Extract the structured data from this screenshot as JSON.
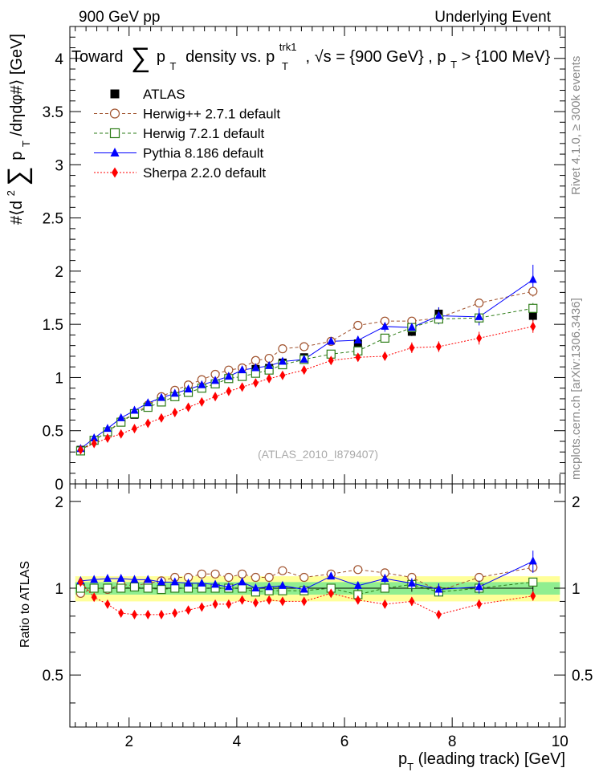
{
  "header": {
    "left": "900 GeV pp",
    "right": "Underlying Event"
  },
  "side_text": {
    "rivet": "Rivet 4.1.0, ≥ 300k events",
    "mcplots": "mcplots.cern.ch [arXiv:1306.3436]"
  },
  "chart_data": {
    "type": "scatter",
    "title": "Toward ∑ pT density vs. pT trk1, √s = {900 GeV} , pT > {100 MeV}",
    "title_parts": {
      "prefix": "Toward",
      "sum": "∑",
      "p": "p",
      "sub_t": "T",
      "mid": "density vs. p",
      "sup_trk1": "trk1",
      "sub_t2": "T",
      "rest1": ", √s = {900 GeV} , p",
      "sub_t3": "T",
      "rest2": " > {100 MeV}"
    },
    "watermark": "(ATLAS_2010_I879407)",
    "ylabel_parts": {
      "pre": "#⟨d",
      "sup2": "2",
      "sum": "∑",
      "p": "p",
      "sub": "T",
      "post": "/dηdφ#⟩ [GeV]"
    },
    "ratio_ylabel": "Ratio to ATLAS",
    "xlabel_parts": {
      "p": "p",
      "sub": "T",
      "rest": " (leading track) [GeV]"
    },
    "xlim": [
      0.9,
      10.1
    ],
    "ylim": [
      0,
      4.3
    ],
    "ratio_ylim": [
      0.33,
      2.3
    ],
    "xticks": [
      2,
      4,
      6,
      8,
      10
    ],
    "yticks": [
      0,
      0.5,
      1,
      1.5,
      2,
      2.5,
      3,
      3.5,
      4
    ],
    "ytick_labels": [
      "0",
      "0.5",
      "1",
      "1.5",
      "2",
      "2.5",
      "3",
      "3.5",
      "4"
    ],
    "ratio_yticks": [
      0.5,
      1,
      2
    ],
    "ratio_ytick_labels": [
      "0.5",
      "1",
      "2"
    ],
    "x": [
      1.1,
      1.35,
      1.6,
      1.85,
      2.1,
      2.35,
      2.6,
      2.85,
      3.1,
      3.35,
      3.6,
      3.85,
      4.1,
      4.35,
      4.6,
      4.85,
      5.25,
      5.75,
      6.25,
      6.75,
      7.25,
      7.75,
      8.5,
      9.5
    ],
    "series": [
      {
        "name": "ATLAS",
        "legend": "ATLAS",
        "color": "#000000",
        "marker": "filled-square",
        "line": "none",
        "values": [
          0.32,
          0.41,
          0.49,
          0.58,
          0.65,
          0.72,
          0.78,
          0.82,
          0.86,
          0.9,
          0.94,
          0.99,
          1.01,
          1.08,
          1.09,
          1.14,
          1.19,
          1.22,
          1.32,
          1.37,
          1.43,
          1.6,
          1.56,
          1.58
        ],
        "errors": [
          0.01,
          0.01,
          0.01,
          0.01,
          0.01,
          0.01,
          0.01,
          0.01,
          0.01,
          0.01,
          0.01,
          0.01,
          0.01,
          0.01,
          0.01,
          0.01,
          0.02,
          0.02,
          0.03,
          0.03,
          0.04,
          0.06,
          0.05,
          0.05
        ]
      },
      {
        "name": "Herwig++",
        "legend": "Herwig++ 2.7.1 default",
        "color": "#a0522d",
        "marker": "open-circle",
        "line": "dashed",
        "values": [
          0.31,
          0.41,
          0.49,
          0.59,
          0.66,
          0.74,
          0.82,
          0.88,
          0.93,
          0.98,
          1.03,
          1.07,
          1.09,
          1.16,
          1.18,
          1.27,
          1.29,
          1.34,
          1.49,
          1.53,
          1.53,
          1.56,
          1.7,
          1.81
        ],
        "errors": [
          0.01,
          0.01,
          0.01,
          0.01,
          0.01,
          0.01,
          0.01,
          0.01,
          0.01,
          0.01,
          0.01,
          0.01,
          0.01,
          0.01,
          0.01,
          0.01,
          0.02,
          0.02,
          0.02,
          0.02,
          0.03,
          0.03,
          0.04,
          0.05
        ]
      },
      {
        "name": "Herwig 7",
        "legend": "Herwig 7.2.1 default",
        "color": "#2e7d18",
        "marker": "open-square",
        "line": "dashed",
        "values": [
          0.31,
          0.41,
          0.49,
          0.58,
          0.66,
          0.72,
          0.77,
          0.82,
          0.86,
          0.9,
          0.94,
          0.99,
          1.01,
          1.04,
          1.07,
          1.12,
          1.17,
          1.22,
          1.25,
          1.37,
          1.47,
          1.55,
          1.56,
          1.65
        ],
        "errors": [
          0.01,
          0.01,
          0.01,
          0.01,
          0.01,
          0.01,
          0.01,
          0.01,
          0.01,
          0.01,
          0.01,
          0.01,
          0.01,
          0.01,
          0.01,
          0.01,
          0.02,
          0.02,
          0.02,
          0.02,
          0.03,
          0.03,
          0.04,
          0.05
        ]
      },
      {
        "name": "Pythia 8",
        "legend": "Pythia 8.186 default",
        "color": "#0000ff",
        "marker": "filled-triangle",
        "line": "solid",
        "values": [
          0.33,
          0.43,
          0.52,
          0.62,
          0.69,
          0.76,
          0.81,
          0.85,
          0.89,
          0.93,
          0.97,
          1.01,
          1.07,
          1.09,
          1.11,
          1.15,
          1.17,
          1.34,
          1.35,
          1.48,
          1.47,
          1.58,
          1.57,
          1.92
        ],
        "errors": [
          0.01,
          0.01,
          0.01,
          0.01,
          0.01,
          0.01,
          0.01,
          0.01,
          0.01,
          0.01,
          0.01,
          0.01,
          0.01,
          0.01,
          0.01,
          0.01,
          0.02,
          0.03,
          0.04,
          0.05,
          0.06,
          0.08,
          0.08,
          0.14
        ]
      },
      {
        "name": "Sherpa",
        "legend": "Sherpa 2.2.0 default",
        "color": "#ff0000",
        "marker": "filled-diamond",
        "line": "dotted",
        "values": [
          0.32,
          0.38,
          0.43,
          0.47,
          0.52,
          0.57,
          0.62,
          0.67,
          0.72,
          0.77,
          0.82,
          0.87,
          0.91,
          0.95,
          0.99,
          1.02,
          1.07,
          1.16,
          1.19,
          1.2,
          1.28,
          1.29,
          1.37,
          1.48
        ],
        "errors": [
          0.01,
          0.01,
          0.01,
          0.01,
          0.01,
          0.01,
          0.01,
          0.01,
          0.01,
          0.01,
          0.01,
          0.01,
          0.01,
          0.01,
          0.01,
          0.01,
          0.02,
          0.03,
          0.04,
          0.04,
          0.05,
          0.05,
          0.06,
          0.06
        ]
      }
    ],
    "ratio_band": {
      "inner": [
        0.95,
        1.05
      ],
      "outer": [
        0.9,
        1.1
      ],
      "inner_color": "#90ee90",
      "outer_color": "#ffff99"
    },
    "ratio_series": [
      {
        "name": "ATLAS",
        "values": [
          1.0,
          1.0,
          1.0,
          1.0,
          1.0,
          1.0,
          1.0,
          1.0,
          1.0,
          1.0,
          1.0,
          1.0,
          1.0,
          1.0,
          1.0,
          1.0,
          1.0,
          1.0,
          1.0,
          1.0,
          1.0,
          1.0,
          1.0,
          1.0
        ]
      },
      {
        "name": "Herwig++",
        "values": [
          0.96,
          1.0,
          0.99,
          1.03,
          1.02,
          1.04,
          1.06,
          1.09,
          1.09,
          1.12,
          1.12,
          1.09,
          1.12,
          1.09,
          1.09,
          1.15,
          1.09,
          1.12,
          1.16,
          1.13,
          1.09,
          0.98,
          1.09,
          1.18
        ]
      },
      {
        "name": "Herwig 7",
        "values": [
          1.0,
          1.0,
          1.0,
          1.0,
          1.01,
          1.0,
          0.99,
          1.0,
          1.0,
          1.0,
          1.0,
          1.0,
          1.0,
          0.97,
          0.98,
          0.98,
          0.98,
          1.0,
          0.95,
          1.0,
          1.03,
          0.97,
          1.0,
          1.05
        ]
      },
      {
        "name": "Pythia 8",
        "values": [
          1.06,
          1.07,
          1.08,
          1.08,
          1.07,
          1.07,
          1.05,
          1.05,
          1.04,
          1.04,
          1.03,
          1.01,
          1.05,
          1.0,
          1.01,
          1.02,
          0.99,
          1.1,
          1.02,
          1.08,
          1.04,
          0.99,
          1.01,
          1.24
        ]
      },
      {
        "name": "Sherpa",
        "values": [
          1.05,
          0.93,
          0.88,
          0.82,
          0.81,
          0.81,
          0.81,
          0.82,
          0.84,
          0.86,
          0.88,
          0.88,
          0.91,
          0.89,
          0.91,
          0.9,
          0.9,
          0.96,
          0.91,
          0.88,
          0.9,
          0.81,
          0.88,
          0.94
        ]
      }
    ]
  }
}
